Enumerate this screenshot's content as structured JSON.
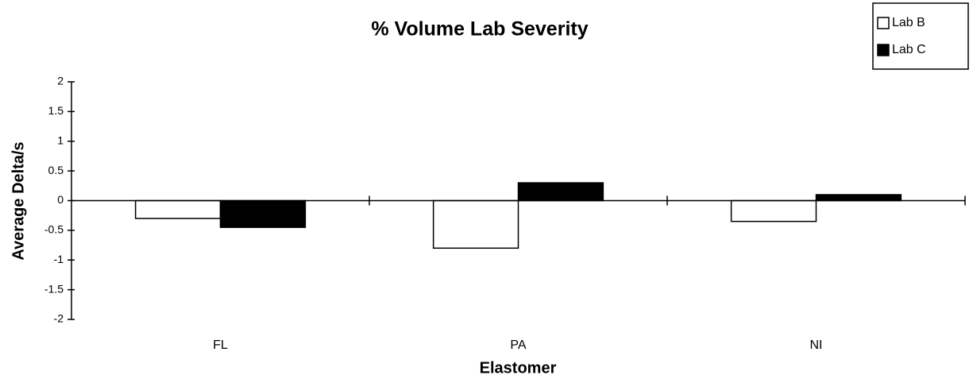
{
  "chart_data": {
    "type": "bar",
    "title": "% Volume Lab Severity",
    "xlabel": "Elastomer",
    "ylabel": "Average Delta/s",
    "categories": [
      "FL",
      "PA",
      "NI"
    ],
    "series": [
      {
        "name": "Lab B",
        "color": "#ffffff",
        "values": [
          -0.3,
          -0.8,
          -0.35
        ]
      },
      {
        "name": "Lab C",
        "color": "#000000",
        "values": [
          -0.45,
          0.3,
          0.1
        ]
      }
    ],
    "ylim": [
      -2,
      2
    ],
    "yticks": [
      -2,
      -1.5,
      -1,
      -0.5,
      0,
      0.5,
      1,
      1.5,
      2
    ],
    "grid": false,
    "legend": "upper right"
  }
}
